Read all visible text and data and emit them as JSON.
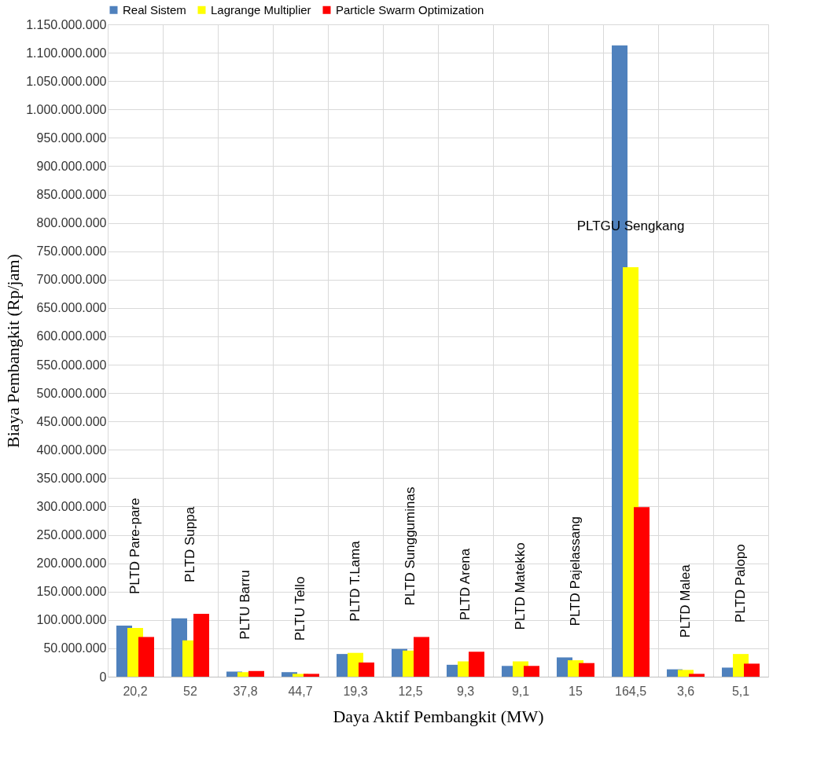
{
  "chart_data": {
    "type": "bar",
    "xlabel": "Daya Aktif Pembangkit (MW)",
    "ylabel": "Biaya Pembangkit (Rp/jam)",
    "categories": [
      "20,2",
      "52",
      "37,8",
      "44,7",
      "19,3",
      "12,5",
      "9,3",
      "9,1",
      "15",
      "164,5",
      "3,6",
      "5,1"
    ],
    "series": [
      {
        "name": "Real Sistem",
        "color": "#4f81bd",
        "values": [
          90000000,
          103000000,
          9000000,
          8000000,
          40000000,
          49000000,
          21000000,
          19000000,
          34000000,
          1113000000,
          13000000,
          16000000
        ]
      },
      {
        "name": "Lagrange Multiplier",
        "color": "#ffff00",
        "values": [
          86000000,
          64000000,
          8000000,
          5000000,
          42000000,
          46000000,
          27000000,
          27000000,
          29000000,
          722000000,
          12000000,
          40000000
        ]
      },
      {
        "name": "Particle Swarm Optimization",
        "color": "#ff0000",
        "values": [
          70000000,
          111000000,
          10000000,
          5000000,
          25000000,
          70000000,
          44000000,
          19000000,
          24000000,
          299000000,
          5000000,
          23000000
        ]
      }
    ],
    "ylim": [
      0,
      1150000000
    ],
    "yticks": [
      {
        "value": 0,
        "label": "0"
      },
      {
        "value": 50000000,
        "label": "50.000.000"
      },
      {
        "value": 100000000,
        "label": "100.000.000"
      },
      {
        "value": 150000000,
        "label": "150.000.000"
      },
      {
        "value": 200000000,
        "label": "200.000.000"
      },
      {
        "value": 250000000,
        "label": "250.000.000"
      },
      {
        "value": 300000000,
        "label": "300.000.000"
      },
      {
        "value": 350000000,
        "label": "350.000.000"
      },
      {
        "value": 400000000,
        "label": "400.000.000"
      },
      {
        "value": 450000000,
        "label": "450.000.000"
      },
      {
        "value": 500000000,
        "label": "500.000.000"
      },
      {
        "value": 550000000,
        "label": "550.000.000"
      },
      {
        "value": 600000000,
        "label": "600.000.000"
      },
      {
        "value": 650000000,
        "label": "650.000.000"
      },
      {
        "value": 700000000,
        "label": "700.000.000"
      },
      {
        "value": 750000000,
        "label": "750.000.000"
      },
      {
        "value": 800000000,
        "label": "800.000.000"
      },
      {
        "value": 850000000,
        "label": "850.000.000"
      },
      {
        "value": 900000000,
        "label": "900.000.000"
      },
      {
        "value": 950000000,
        "label": "950.000.000"
      },
      {
        "value": 1000000000,
        "label": "1.000.000.000"
      },
      {
        "value": 1050000000,
        "label": "1.050.000.000"
      },
      {
        "value": 1100000000,
        "label": "1.100.000.000"
      },
      {
        "value": 1150000000,
        "label": "1.150.000.000"
      }
    ],
    "annotations": [
      "PLTD Pare-pare",
      "PLTD Suppa",
      "PLTU Barru",
      "PLTU Tello",
      "PLTD T.Lama",
      "PLTD Sungguminas",
      "PLTD Arena",
      "PLTD Matekko",
      "PLTD Pajelassang",
      "PLTGU Sengkang",
      "PLTD Malea",
      "PLTD Palopo"
    ],
    "grid": true,
    "legend": "top"
  }
}
